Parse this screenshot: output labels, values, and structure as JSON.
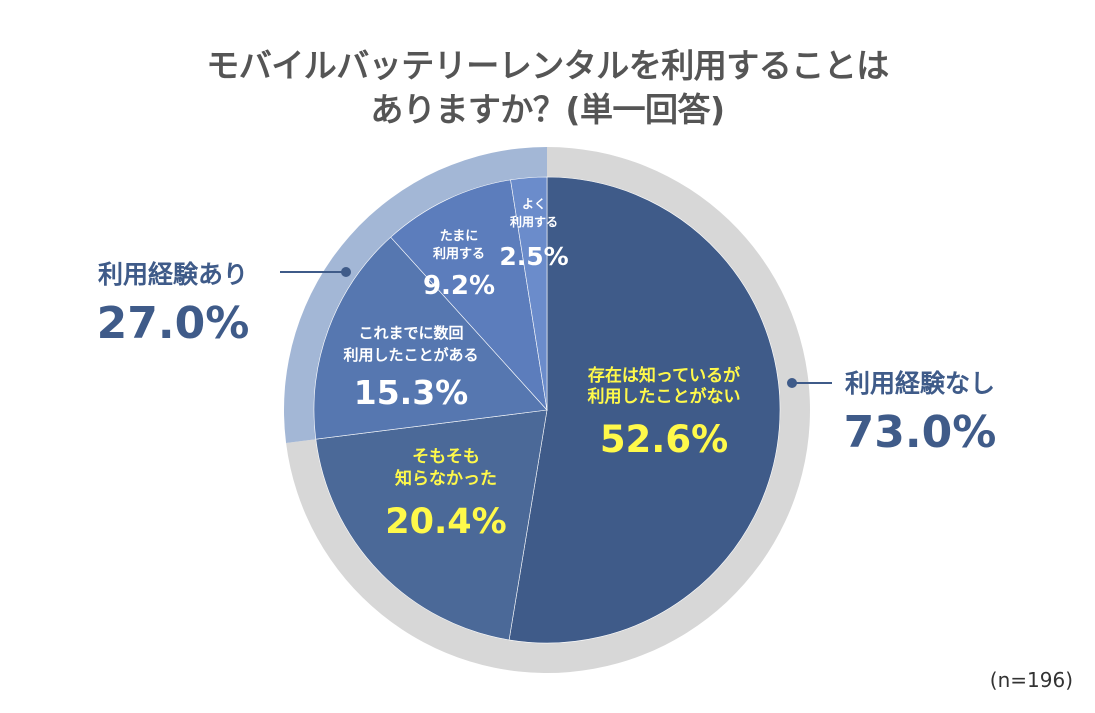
{
  "title": {
    "line1": "モバイルバッテリーレンタルを利用することは",
    "line2": "ありますか？(単一回答)"
  },
  "note": "(n=196)",
  "colors": {
    "outer_ring_no": "#d7d7d7",
    "outer_ring_yes": "#a3b7d6",
    "slice_existing": "#3f5b89",
    "slice_never": "#4b6998",
    "slice_several": "#5677b0",
    "slice_sometimes": "#5c7dbc",
    "slice_often": "#6b8ccb",
    "group_text": "#3f5b89",
    "highlight_text": "#fff94a",
    "white_text": "#ffffff"
  },
  "chart_data": {
    "type": "pie",
    "title": "モバイルバッテリーレンタルを利用することはありますか？(単一回答)",
    "sample_size": 196,
    "unit": "%",
    "groups": [
      {
        "key": "no",
        "label": "利用経験なし",
        "value_text": "73.0%",
        "value": 73.0,
        "members": [
          "existing",
          "never"
        ]
      },
      {
        "key": "yes",
        "label": "利用経験あり",
        "value_text": "27.0%",
        "value": 27.0,
        "members": [
          "several",
          "sometimes",
          "often"
        ]
      }
    ],
    "slices": [
      {
        "key": "existing",
        "label_lines": [
          "存在は知っているが",
          "利用したことがない"
        ],
        "value_text": "52.6%",
        "value": 52.6,
        "text_color": "highlight"
      },
      {
        "key": "never",
        "label_lines": [
          "そもそも",
          "知らなかった"
        ],
        "value_text": "20.4%",
        "value": 20.4,
        "text_color": "highlight"
      },
      {
        "key": "several",
        "label_lines": [
          "これまでに数回",
          "利用したことがある"
        ],
        "value_text": "15.3%",
        "value": 15.3,
        "text_color": "white"
      },
      {
        "key": "sometimes",
        "label_lines": [
          "たまに",
          "利用する"
        ],
        "value_text": "9.2%",
        "value": 9.2,
        "text_color": "white"
      },
      {
        "key": "often",
        "label_lines": [
          "よく",
          "利用する"
        ],
        "value_text": "2.5%",
        "value": 2.5,
        "text_color": "white"
      }
    ]
  }
}
